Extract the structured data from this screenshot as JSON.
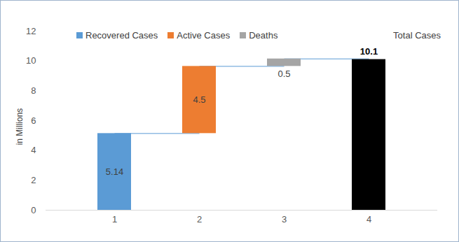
{
  "chart_data": {
    "type": "waterfall",
    "categories": [
      "1",
      "2",
      "3",
      "4"
    ],
    "series": [
      {
        "name": "Recovered Cases",
        "color": "#5b9bd5",
        "values": [
          5.14,
          null,
          null,
          null
        ]
      },
      {
        "name": "Active Cases",
        "color": "#ed7d31",
        "values": [
          null,
          4.5,
          null,
          null
        ]
      },
      {
        "name": "Deaths",
        "color": "#a5a5a5",
        "values": [
          null,
          null,
          0.5,
          null
        ]
      },
      {
        "name": "Total Cases",
        "color": "#000000",
        "type": "total",
        "values": [
          null,
          null,
          null,
          10.1
        ]
      }
    ],
    "y_label": "in Millions",
    "ylim": [
      0,
      12
    ],
    "yticks": [
      0,
      2,
      4,
      6,
      8,
      10,
      12
    ],
    "data_labels": true,
    "legend": "top",
    "grid": false
  }
}
